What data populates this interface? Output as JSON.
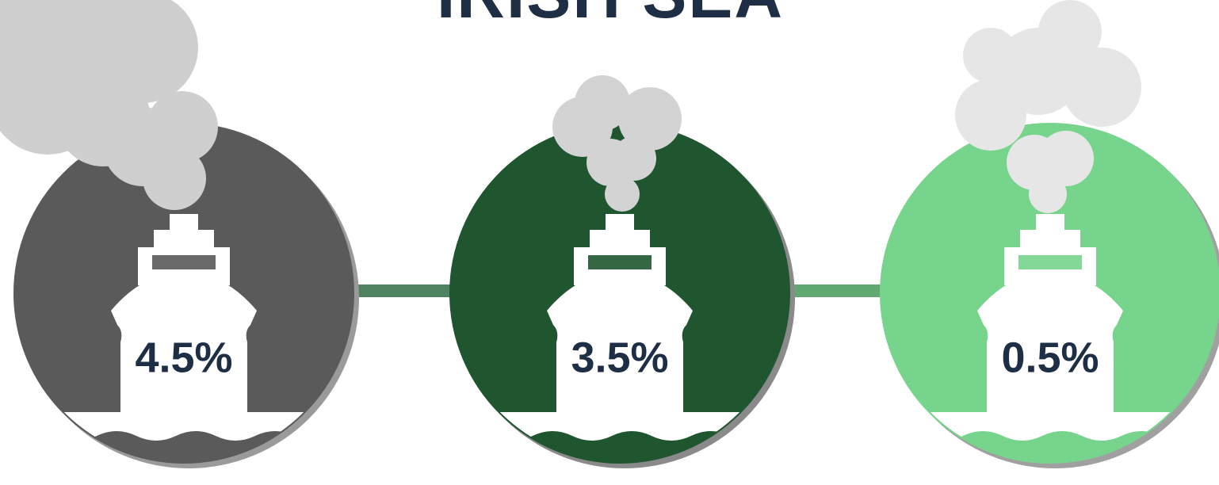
{
  "title": "IRISH SEA",
  "items": [
    {
      "label": "4.5%"
    },
    {
      "label": "3.5%"
    },
    {
      "label": "0.5%"
    }
  ]
}
